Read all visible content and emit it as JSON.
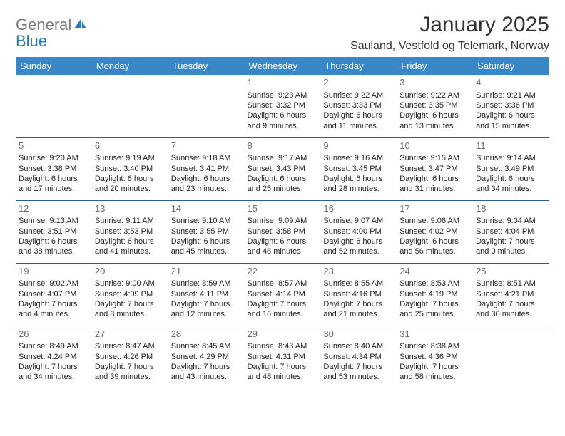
{
  "logo": {
    "word1": "General",
    "word2": "Blue"
  },
  "title": "January 2025",
  "location": "Sauland, Vestfold og Telemark, Norway",
  "columns": [
    "Sunday",
    "Monday",
    "Tuesday",
    "Wednesday",
    "Thursday",
    "Friday",
    "Saturday"
  ],
  "colors": {
    "header_bg": "#3a87c7",
    "header_fg": "#ffffff",
    "rule": "#2f5f8a",
    "daynum": "#6b6b6b",
    "logo_gray": "#7a7a7a",
    "logo_blue": "#2f78b8"
  },
  "weeks": [
    [
      null,
      null,
      null,
      {
        "n": "1",
        "sunrise": "Sunrise: 9:23 AM",
        "sunset": "Sunset: 3:32 PM",
        "day1": "Daylight: 6 hours",
        "day2": "and 9 minutes."
      },
      {
        "n": "2",
        "sunrise": "Sunrise: 9:22 AM",
        "sunset": "Sunset: 3:33 PM",
        "day1": "Daylight: 6 hours",
        "day2": "and 11 minutes."
      },
      {
        "n": "3",
        "sunrise": "Sunrise: 9:22 AM",
        "sunset": "Sunset: 3:35 PM",
        "day1": "Daylight: 6 hours",
        "day2": "and 13 minutes."
      },
      {
        "n": "4",
        "sunrise": "Sunrise: 9:21 AM",
        "sunset": "Sunset: 3:36 PM",
        "day1": "Daylight: 6 hours",
        "day2": "and 15 minutes."
      }
    ],
    [
      {
        "n": "5",
        "sunrise": "Sunrise: 9:20 AM",
        "sunset": "Sunset: 3:38 PM",
        "day1": "Daylight: 6 hours",
        "day2": "and 17 minutes."
      },
      {
        "n": "6",
        "sunrise": "Sunrise: 9:19 AM",
        "sunset": "Sunset: 3:40 PM",
        "day1": "Daylight: 6 hours",
        "day2": "and 20 minutes."
      },
      {
        "n": "7",
        "sunrise": "Sunrise: 9:18 AM",
        "sunset": "Sunset: 3:41 PM",
        "day1": "Daylight: 6 hours",
        "day2": "and 23 minutes."
      },
      {
        "n": "8",
        "sunrise": "Sunrise: 9:17 AM",
        "sunset": "Sunset: 3:43 PM",
        "day1": "Daylight: 6 hours",
        "day2": "and 25 minutes."
      },
      {
        "n": "9",
        "sunrise": "Sunrise: 9:16 AM",
        "sunset": "Sunset: 3:45 PM",
        "day1": "Daylight: 6 hours",
        "day2": "and 28 minutes."
      },
      {
        "n": "10",
        "sunrise": "Sunrise: 9:15 AM",
        "sunset": "Sunset: 3:47 PM",
        "day1": "Daylight: 6 hours",
        "day2": "and 31 minutes."
      },
      {
        "n": "11",
        "sunrise": "Sunrise: 9:14 AM",
        "sunset": "Sunset: 3:49 PM",
        "day1": "Daylight: 6 hours",
        "day2": "and 34 minutes."
      }
    ],
    [
      {
        "n": "12",
        "sunrise": "Sunrise: 9:13 AM",
        "sunset": "Sunset: 3:51 PM",
        "day1": "Daylight: 6 hours",
        "day2": "and 38 minutes."
      },
      {
        "n": "13",
        "sunrise": "Sunrise: 9:11 AM",
        "sunset": "Sunset: 3:53 PM",
        "day1": "Daylight: 6 hours",
        "day2": "and 41 minutes."
      },
      {
        "n": "14",
        "sunrise": "Sunrise: 9:10 AM",
        "sunset": "Sunset: 3:55 PM",
        "day1": "Daylight: 6 hours",
        "day2": "and 45 minutes."
      },
      {
        "n": "15",
        "sunrise": "Sunrise: 9:09 AM",
        "sunset": "Sunset: 3:58 PM",
        "day1": "Daylight: 6 hours",
        "day2": "and 48 minutes."
      },
      {
        "n": "16",
        "sunrise": "Sunrise: 9:07 AM",
        "sunset": "Sunset: 4:00 PM",
        "day1": "Daylight: 6 hours",
        "day2": "and 52 minutes."
      },
      {
        "n": "17",
        "sunrise": "Sunrise: 9:06 AM",
        "sunset": "Sunset: 4:02 PM",
        "day1": "Daylight: 6 hours",
        "day2": "and 56 minutes."
      },
      {
        "n": "18",
        "sunrise": "Sunrise: 9:04 AM",
        "sunset": "Sunset: 4:04 PM",
        "day1": "Daylight: 7 hours",
        "day2": "and 0 minutes."
      }
    ],
    [
      {
        "n": "19",
        "sunrise": "Sunrise: 9:02 AM",
        "sunset": "Sunset: 4:07 PM",
        "day1": "Daylight: 7 hours",
        "day2": "and 4 minutes."
      },
      {
        "n": "20",
        "sunrise": "Sunrise: 9:00 AM",
        "sunset": "Sunset: 4:09 PM",
        "day1": "Daylight: 7 hours",
        "day2": "and 8 minutes."
      },
      {
        "n": "21",
        "sunrise": "Sunrise: 8:59 AM",
        "sunset": "Sunset: 4:11 PM",
        "day1": "Daylight: 7 hours",
        "day2": "and 12 minutes."
      },
      {
        "n": "22",
        "sunrise": "Sunrise: 8:57 AM",
        "sunset": "Sunset: 4:14 PM",
        "day1": "Daylight: 7 hours",
        "day2": "and 16 minutes."
      },
      {
        "n": "23",
        "sunrise": "Sunrise: 8:55 AM",
        "sunset": "Sunset: 4:16 PM",
        "day1": "Daylight: 7 hours",
        "day2": "and 21 minutes."
      },
      {
        "n": "24",
        "sunrise": "Sunrise: 8:53 AM",
        "sunset": "Sunset: 4:19 PM",
        "day1": "Daylight: 7 hours",
        "day2": "and 25 minutes."
      },
      {
        "n": "25",
        "sunrise": "Sunrise: 8:51 AM",
        "sunset": "Sunset: 4:21 PM",
        "day1": "Daylight: 7 hours",
        "day2": "and 30 minutes."
      }
    ],
    [
      {
        "n": "26",
        "sunrise": "Sunrise: 8:49 AM",
        "sunset": "Sunset: 4:24 PM",
        "day1": "Daylight: 7 hours",
        "day2": "and 34 minutes."
      },
      {
        "n": "27",
        "sunrise": "Sunrise: 8:47 AM",
        "sunset": "Sunset: 4:26 PM",
        "day1": "Daylight: 7 hours",
        "day2": "and 39 minutes."
      },
      {
        "n": "28",
        "sunrise": "Sunrise: 8:45 AM",
        "sunset": "Sunset: 4:29 PM",
        "day1": "Daylight: 7 hours",
        "day2": "and 43 minutes."
      },
      {
        "n": "29",
        "sunrise": "Sunrise: 8:43 AM",
        "sunset": "Sunset: 4:31 PM",
        "day1": "Daylight: 7 hours",
        "day2": "and 48 minutes."
      },
      {
        "n": "30",
        "sunrise": "Sunrise: 8:40 AM",
        "sunset": "Sunset: 4:34 PM",
        "day1": "Daylight: 7 hours",
        "day2": "and 53 minutes."
      },
      {
        "n": "31",
        "sunrise": "Sunrise: 8:38 AM",
        "sunset": "Sunset: 4:36 PM",
        "day1": "Daylight: 7 hours",
        "day2": "and 58 minutes."
      },
      null
    ]
  ]
}
